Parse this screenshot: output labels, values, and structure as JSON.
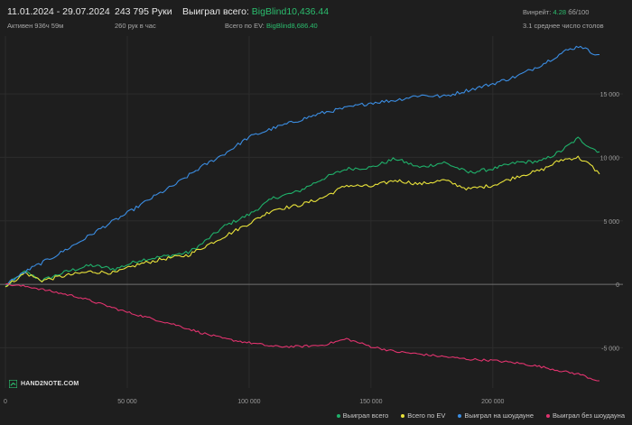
{
  "header": {
    "date_range": "11.01.2024 - 29.07.2024",
    "active_time": "Активен 936ч 59м",
    "hands": "243 795 Руки",
    "hands_per_hour": "260 рук в час",
    "won_total_label": "Выиграл всего:",
    "won_total_value": "BigBlind10,436.44",
    "ev_total_label": "Всего по EV:",
    "ev_total_value": "BigBlind8,686.40",
    "winrate_label": "Винрейт:",
    "winrate_value": "4.28",
    "winrate_suffix": "бб/100",
    "avg_tables": "3.1 среднее число столов"
  },
  "brand": "HAND2NOTE.COM",
  "colors": {
    "background": "#1e1e1e",
    "grid": "#2c2c2c",
    "zero_line": "#707070",
    "accent_green": "#2bbd6e"
  },
  "chart_data": {
    "type": "line",
    "x_ticks": [
      0,
      50000,
      100000,
      150000,
      200000
    ],
    "x_tick_labels": [
      "0",
      "50 000",
      "100 000",
      "150 000",
      "200 000"
    ],
    "y_ticks": [
      -5000,
      0,
      5000,
      10000,
      15000
    ],
    "y_tick_labels": [
      "-5 000",
      "0",
      "5 000",
      "10 000",
      "15 000"
    ],
    "xlim": [
      0,
      243795
    ],
    "ylim": [
      -7600,
      19200
    ],
    "grid": true,
    "legend_position": "bottom-right",
    "series": [
      {
        "name": "Выиграл всего",
        "color": "#1fb06a",
        "x": [
          0,
          8000,
          15000,
          25000,
          35000,
          45000,
          55000,
          65000,
          75000,
          80000,
          90000,
          100000,
          110000,
          120000,
          130000,
          140000,
          150000,
          160000,
          170000,
          180000,
          190000,
          200000,
          210000,
          220000,
          228000,
          235000,
          240000,
          243795
        ],
        "y": [
          -200,
          1000,
          300,
          1000,
          1500,
          1200,
          1900,
          2200,
          2500,
          3100,
          4600,
          5500,
          6800,
          7300,
          8300,
          9100,
          9200,
          9900,
          9200,
          9600,
          8800,
          9100,
          9600,
          9700,
          10500,
          11500,
          10800,
          10436
        ]
      },
      {
        "name": "Всего по EV",
        "color": "#e8e23a",
        "x": [
          0,
          8000,
          15000,
          25000,
          35000,
          45000,
          55000,
          65000,
          75000,
          80000,
          90000,
          100000,
          110000,
          120000,
          130000,
          140000,
          150000,
          160000,
          170000,
          180000,
          190000,
          200000,
          210000,
          220000,
          228000,
          235000,
          240000,
          243795
        ],
        "y": [
          -200,
          900,
          300,
          700,
          1000,
          900,
          1600,
          2000,
          2300,
          2800,
          3800,
          4800,
          5900,
          6200,
          6800,
          7800,
          7700,
          8200,
          7900,
          8200,
          7500,
          7800,
          8500,
          9000,
          9800,
          10000,
          9400,
          8686
        ]
      },
      {
        "name": "Выиграл на шоудауне",
        "color": "#3b8de2",
        "x": [
          0,
          10000,
          20000,
          30000,
          40000,
          50000,
          60000,
          70000,
          80000,
          90000,
          100000,
          110000,
          120000,
          130000,
          140000,
          150000,
          160000,
          170000,
          180000,
          190000,
          200000,
          210000,
          220000,
          230000,
          236000,
          240000,
          243795
        ],
        "y": [
          0,
          1200,
          2200,
          3300,
          4500,
          5600,
          6800,
          7900,
          9200,
          10300,
          11600,
          12300,
          12900,
          13500,
          13900,
          14300,
          14500,
          14900,
          14800,
          15300,
          15800,
          16400,
          17300,
          18400,
          18800,
          18300,
          18100
        ]
      },
      {
        "name": "Выиграл без шоудауна",
        "color": "#e0336e",
        "x": [
          0,
          10000,
          20000,
          30000,
          40000,
          50000,
          60000,
          70000,
          80000,
          90000,
          100000,
          110000,
          120000,
          130000,
          140000,
          150000,
          160000,
          170000,
          180000,
          190000,
          200000,
          210000,
          220000,
          230000,
          236000,
          240000,
          243795
        ],
        "y": [
          0,
          -200,
          -600,
          -1000,
          -1600,
          -2200,
          -2700,
          -3200,
          -3800,
          -4300,
          -4600,
          -4900,
          -4900,
          -4800,
          -4300,
          -4900,
          -5300,
          -5500,
          -5700,
          -5900,
          -6000,
          -6200,
          -6500,
          -6900,
          -7100,
          -7400,
          -7600
        ]
      }
    ]
  }
}
